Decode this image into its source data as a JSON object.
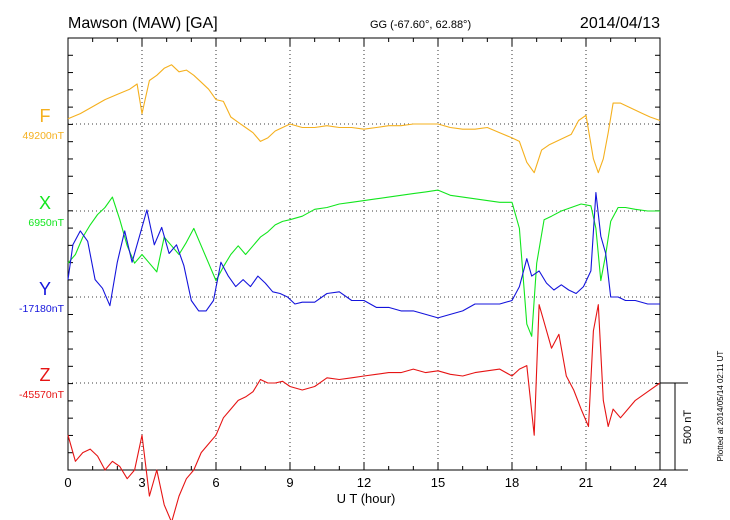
{
  "chart_data": {
    "type": "line",
    "title": "Mawson (MAW)  [GA]",
    "coords": "GG (-67.60°,  62.88°)",
    "date": "2014/04/13",
    "xlabel": "U T (hour)",
    "xlim": [
      0,
      24
    ],
    "xticks": [
      0,
      3,
      6,
      9,
      12,
      15,
      18,
      21,
      24
    ],
    "xtick_labels": [
      "0",
      "3",
      "6",
      "9",
      "12",
      "15",
      "18",
      "21",
      "24"
    ],
    "scale_bar_label": "500 nT",
    "plotted_label": "Plotted at 2014/05/14 02:11  UT",
    "series": [
      {
        "name": "F",
        "baseline_label": "49200nT",
        "color": "#f5b01e",
        "baseline": 0,
        "x": [
          0,
          0.5,
          1,
          1.5,
          2,
          2.5,
          2.8,
          3,
          3.3,
          3.6,
          3.9,
          4.2,
          4.5,
          4.8,
          5.1,
          5.4,
          5.7,
          6,
          6.3,
          6.6,
          6.9,
          7.2,
          7.5,
          7.8,
          8.1,
          8.4,
          8.7,
          9,
          9.5,
          10,
          10.5,
          11,
          11.5,
          12,
          12.5,
          13,
          13.5,
          14,
          14.5,
          15,
          15.5,
          16,
          16.5,
          17,
          17.5,
          18,
          18.3,
          18.6,
          18.9,
          19.2,
          19.5,
          19.8,
          20.1,
          20.4,
          20.7,
          21,
          21.3,
          21.5,
          21.7,
          21.9,
          22.1,
          22.4,
          22.7,
          23,
          23.3,
          23.6,
          24
        ],
        "y": [
          30,
          60,
          100,
          140,
          170,
          200,
          230,
          60,
          250,
          280,
          320,
          340,
          300,
          310,
          280,
          240,
          200,
          140,
          130,
          40,
          10,
          -20,
          -50,
          -100,
          -80,
          -40,
          -20,
          0,
          -20,
          -20,
          -10,
          -20,
          -20,
          -30,
          -20,
          -10,
          -10,
          0,
          0,
          0,
          -20,
          -30,
          -30,
          -20,
          -50,
          -80,
          -100,
          -220,
          -280,
          -150,
          -120,
          -100,
          -80,
          -60,
          20,
          50,
          -200,
          -280,
          -200,
          -50,
          120,
          120,
          100,
          80,
          60,
          40,
          20
        ]
      },
      {
        "name": "X",
        "baseline_label": "6950nT",
        "color": "#12e61e",
        "baseline": 0,
        "x": [
          0,
          0.3,
          0.6,
          0.9,
          1.2,
          1.5,
          1.8,
          2.1,
          2.4,
          2.7,
          3,
          3.3,
          3.6,
          3.9,
          4.2,
          4.5,
          4.8,
          5.1,
          5.4,
          5.7,
          6,
          6.3,
          6.6,
          6.9,
          7.2,
          7.5,
          7.8,
          8.1,
          8.4,
          8.7,
          9,
          9.5,
          10,
          10.5,
          11,
          11.5,
          12,
          12.5,
          13,
          13.5,
          14,
          14.5,
          15,
          15.5,
          16,
          16.5,
          17,
          17.5,
          18,
          18.3,
          18.6,
          18.8,
          19,
          19.3,
          19.6,
          20,
          20.4,
          20.8,
          21.2,
          21.4,
          21.6,
          21.8,
          22,
          22.3,
          22.6,
          23,
          23.5,
          24
        ],
        "y": [
          -300,
          -250,
          -150,
          -80,
          -20,
          20,
          80,
          -50,
          -200,
          -300,
          -250,
          -300,
          -350,
          -150,
          -200,
          -250,
          -180,
          -100,
          -200,
          -300,
          -400,
          -320,
          -250,
          -200,
          -250,
          -200,
          -150,
          -120,
          -80,
          -60,
          -50,
          -30,
          10,
          20,
          40,
          50,
          60,
          70,
          80,
          90,
          100,
          110,
          120,
          90,
          80,
          70,
          60,
          50,
          50,
          -100,
          -650,
          -720,
          -300,
          -50,
          -30,
          0,
          20,
          40,
          30,
          -100,
          -400,
          -250,
          -60,
          20,
          20,
          10,
          0,
          0
        ]
      },
      {
        "name": "Y",
        "baseline_label": "-17180nT",
        "color": "#1414dc",
        "baseline": 0,
        "x": [
          0,
          0.2,
          0.5,
          0.8,
          1.1,
          1.4,
          1.7,
          2,
          2.3,
          2.6,
          2.9,
          3.2,
          3.5,
          3.8,
          4.1,
          4.4,
          4.7,
          5,
          5.3,
          5.6,
          5.9,
          6.2,
          6.5,
          6.8,
          7.1,
          7.4,
          7.7,
          8,
          8.3,
          8.6,
          8.9,
          9.2,
          9.5,
          10,
          10.5,
          11,
          11.5,
          12,
          12.5,
          13,
          13.5,
          14,
          14.5,
          15,
          15.5,
          16,
          16.5,
          17,
          17.5,
          18,
          18.3,
          18.6,
          18.8,
          19.1,
          19.4,
          19.7,
          20,
          20.3,
          20.6,
          20.9,
          21.2,
          21.4,
          21.6,
          21.8,
          22,
          22.3,
          22.6,
          23,
          23.5,
          24
        ],
        "y": [
          100,
          300,
          380,
          320,
          100,
          50,
          -50,
          200,
          380,
          200,
          350,
          500,
          300,
          400,
          250,
          300,
          180,
          -20,
          -80,
          -80,
          -20,
          200,
          120,
          60,
          100,
          60,
          120,
          80,
          30,
          20,
          0,
          -40,
          -30,
          -30,
          20,
          30,
          -20,
          -20,
          -60,
          -60,
          -80,
          -80,
          -100,
          -120,
          -100,
          -80,
          -40,
          -40,
          -40,
          -20,
          60,
          220,
          120,
          150,
          80,
          40,
          70,
          40,
          20,
          60,
          150,
          600,
          350,
          250,
          0,
          0,
          -20,
          -20,
          -40,
          -40
        ]
      },
      {
        "name": "Z",
        "baseline_label": "-45570nT",
        "color": "#e61414",
        "baseline": 0,
        "x": [
          0,
          0.3,
          0.6,
          0.9,
          1.2,
          1.5,
          1.8,
          2.1,
          2.4,
          2.7,
          3,
          3.3,
          3.6,
          3.9,
          4.2,
          4.5,
          4.8,
          5.1,
          5.4,
          5.7,
          6,
          6.3,
          6.6,
          6.9,
          7.2,
          7.5,
          7.8,
          8.1,
          8.4,
          8.7,
          9,
          9.5,
          10,
          10.5,
          11,
          11.5,
          12,
          12.5,
          13,
          13.5,
          14,
          14.5,
          15,
          15.5,
          16,
          16.5,
          17,
          17.5,
          18,
          18.3,
          18.6,
          18.9,
          19.1,
          19.3,
          19.6,
          19.9,
          20.2,
          20.5,
          20.8,
          21.1,
          21.3,
          21.5,
          21.7,
          21.9,
          22.1,
          22.4,
          22.7,
          23,
          23.5,
          24
        ],
        "y": [
          -300,
          -450,
          -400,
          -380,
          -420,
          -500,
          -450,
          -480,
          -550,
          -500,
          -300,
          -650,
          -500,
          -700,
          -800,
          -650,
          -550,
          -500,
          -400,
          -350,
          -300,
          -200,
          -150,
          -100,
          -80,
          -50,
          20,
          0,
          0,
          10,
          -20,
          -40,
          -20,
          30,
          20,
          30,
          40,
          50,
          60,
          60,
          80,
          60,
          70,
          50,
          40,
          60,
          70,
          80,
          40,
          80,
          100,
          -300,
          450,
          350,
          200,
          280,
          40,
          -40,
          -150,
          -250,
          300,
          450,
          -100,
          -250,
          -150,
          -200,
          -150,
          -100,
          -50,
          0
        ]
      }
    ]
  }
}
